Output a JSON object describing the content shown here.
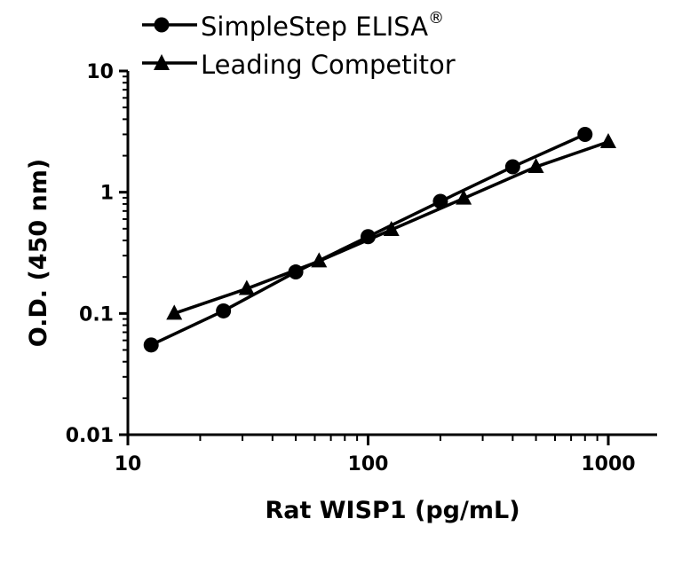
{
  "chart_data": {
    "type": "line",
    "xlabel": "Rat WISP1 (pg/mL)",
    "ylabel": "O.D. (450 nm)",
    "xscale": "log",
    "yscale": "log",
    "xlim": [
      10,
      1500
    ],
    "ylim": [
      0.01,
      10
    ],
    "x_ticks": [
      "10",
      "100",
      "1000"
    ],
    "y_ticks": [
      "0.01",
      "0.1",
      "1",
      "10"
    ],
    "grid": false,
    "legend_position": "top-left",
    "series": [
      {
        "name": "SimpleStep ELISA",
        "name_superscript": "®",
        "marker": "circle",
        "x": [
          12.5,
          25,
          50,
          100,
          200,
          400,
          800
        ],
        "y": [
          0.055,
          0.105,
          0.22,
          0.43,
          0.84,
          1.62,
          3.0
        ]
      },
      {
        "name": "Leading Competitor",
        "marker": "triangle",
        "x": [
          15.6,
          31.25,
          62.5,
          125,
          250,
          500,
          1000
        ],
        "y": [
          0.1,
          0.16,
          0.27,
          0.49,
          0.89,
          1.62,
          2.6
        ]
      }
    ]
  }
}
